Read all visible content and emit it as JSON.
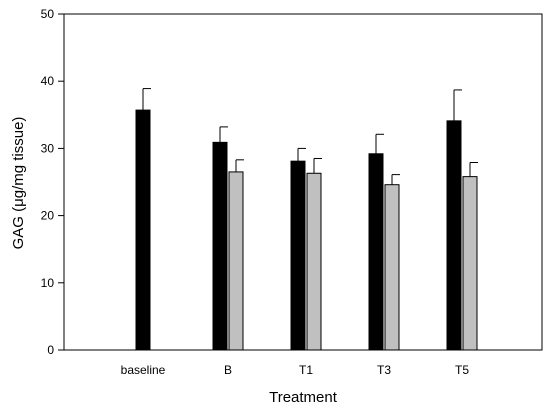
{
  "chart_data": {
    "type": "bar",
    "title": "",
    "xlabel": "Treatment",
    "ylabel": "GAG (μg/mg tissue)",
    "ylim": [
      0,
      50
    ],
    "yticks": [
      0,
      10,
      20,
      30,
      40,
      50
    ],
    "categories": [
      "baseline",
      "B",
      "T1",
      "T3",
      "T5"
    ],
    "error_bars": "upper",
    "series": [
      {
        "color": "#000000",
        "values": [
          35.7,
          30.9,
          28.1,
          29.2,
          34.1
        ],
        "errors": [
          3.2,
          2.3,
          1.9,
          2.9,
          4.6
        ]
      },
      {
        "color": "#c0c0c0",
        "values": [
          null,
          26.5,
          26.3,
          24.6,
          25.8
        ],
        "errors": [
          null,
          1.8,
          2.2,
          1.5,
          2.1
        ]
      }
    ],
    "grid": false,
    "legend": "none"
  }
}
